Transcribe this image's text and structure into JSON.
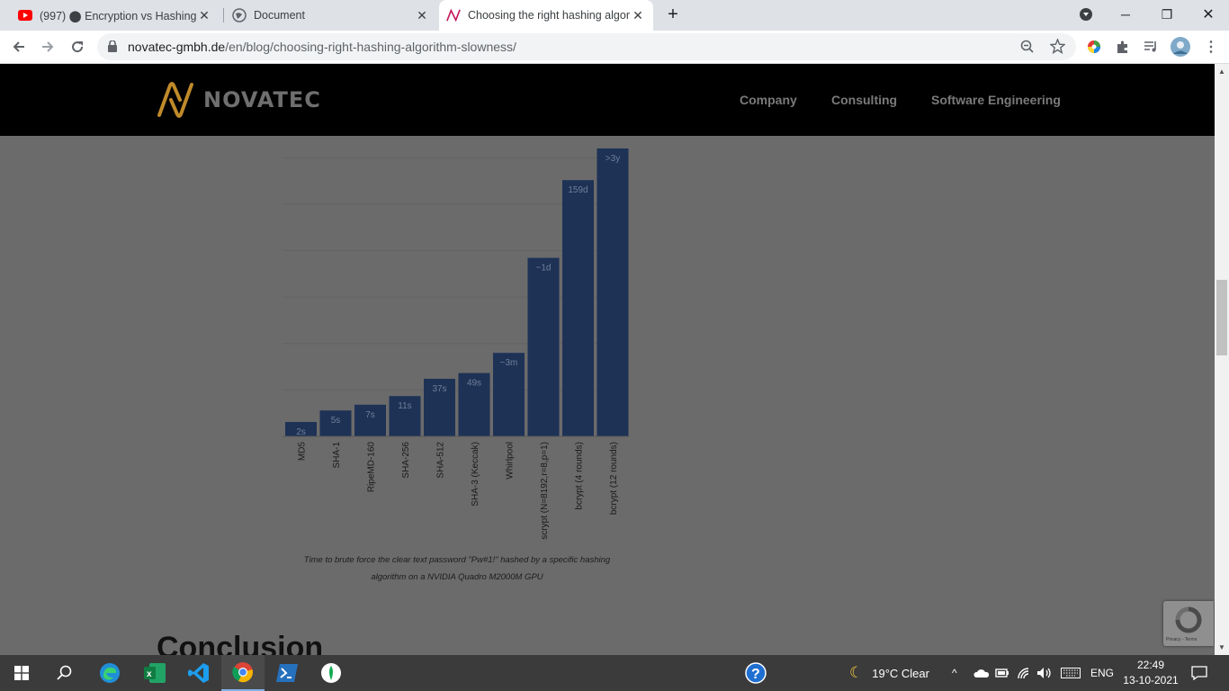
{
  "tabs": [
    {
      "title": "(997) ⬤ Encryption vs Hashing |",
      "favicon": "youtube-icon"
    },
    {
      "title": "Document",
      "favicon": "globe-icon"
    },
    {
      "title": "Choosing the right hashing algor",
      "favicon": "novatec-icon"
    }
  ],
  "new_tab_label": "+",
  "toolbar": {
    "url_host": "novatec-gmbh.de",
    "url_path": "/en/blog/choosing-right-hashing-algorithm-slowness/"
  },
  "site": {
    "logo_text": "NOVATEC",
    "nav": [
      "Company",
      "Consulting",
      "Software Engineering"
    ]
  },
  "chart_data": {
    "type": "bar",
    "categories": [
      "MD5",
      "SHA-1",
      "RipeMD-160",
      "SHA-256",
      "SHA-512",
      "SHA-3 (Keccak)",
      "Whirlpool",
      "scrypt (N=8192,r=8,p=1)",
      "bcrypt (4 rounds)",
      "bcrypt (12 rounds)"
    ],
    "values": [
      5,
      9,
      11,
      14,
      20,
      22,
      29,
      62,
      89,
      100
    ],
    "labels": [
      "2s",
      "5s",
      "7s",
      "11s",
      "37s",
      "49s",
      "~3m",
      "~1d",
      "159d",
      ">3y"
    ],
    "value_unit": "relative bar height (% of tallest bar)",
    "bar_color": "#1e3256",
    "grid": true
  },
  "caption": {
    "line1": "Time to brute force the clear text password \"Pw#1!\" hashed by a specific hashing",
    "line2": "algorithm on a NVIDIA Quadro M2000M GPU"
  },
  "section_heading": "Conclusion",
  "recaptcha_terms": "Privacy - Terms",
  "taskbar": {
    "weather": "19°C  Clear",
    "language": "ENG",
    "time": "22:49",
    "date": "13-10-2021"
  }
}
